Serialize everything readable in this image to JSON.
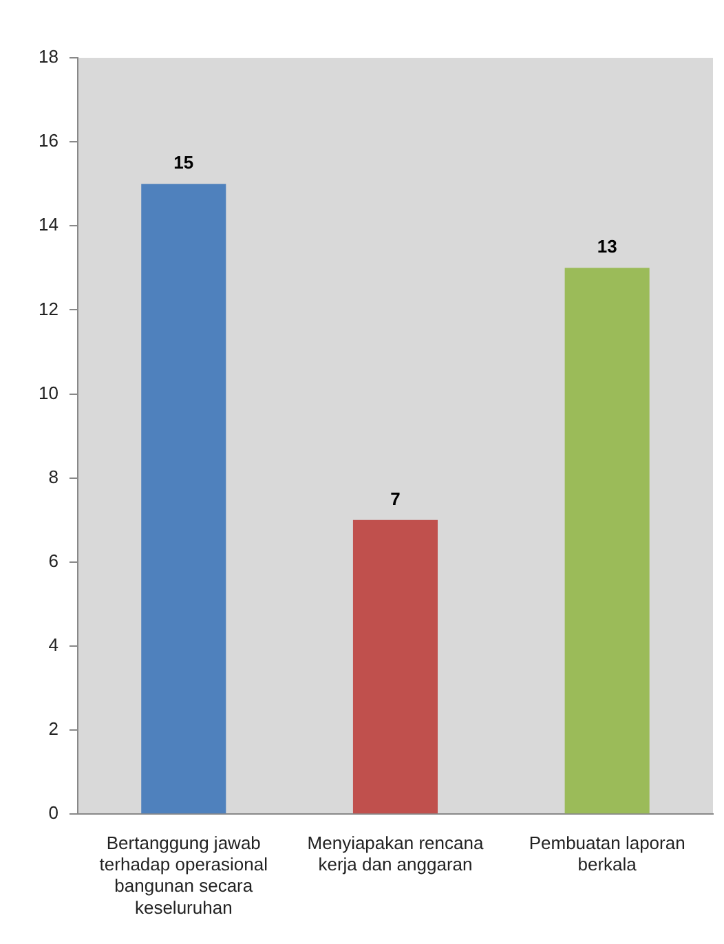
{
  "chart_data": {
    "type": "bar",
    "categories": [
      "Bertanggung jawab terhadap operasional bangunan secara keseluruhan",
      "Menyiapakan rencana kerja dan anggaran",
      "Pembuatan laporan berkala"
    ],
    "values": [
      15,
      7,
      13
    ],
    "colors": [
      "#4f81bd",
      "#c0504d",
      "#9bbb59"
    ],
    "ylim": [
      0,
      18
    ],
    "yticks": [
      0,
      2,
      4,
      6,
      8,
      10,
      12,
      14,
      16,
      18
    ],
    "grid": false,
    "legend": false,
    "data_labels": true
  }
}
